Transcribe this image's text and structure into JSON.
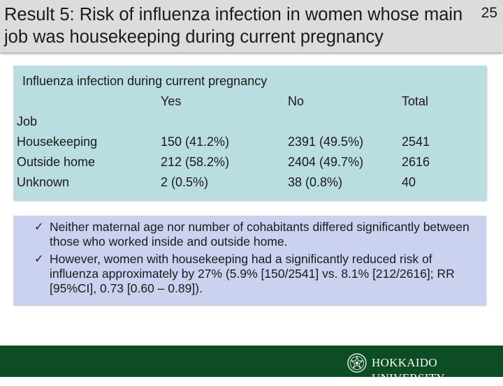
{
  "header": {
    "title": "Result 5: Risk of influenza infection in women whose main job was housekeeping during current pregnancy",
    "slide_number": "25"
  },
  "table": {
    "caption": "Influenza infection during current pregnancy",
    "columns": [
      "Yes",
      "No",
      "Total"
    ],
    "group_label": "Job",
    "rows": [
      {
        "label": "Housekeeping",
        "yes": "150 (41.2%)",
        "no": "2391 (49.5%)",
        "total": "2541"
      },
      {
        "label": "Outside home",
        "yes": "212 (58.2%)",
        "no": "2404 (49.7%)",
        "total": "2616"
      },
      {
        "label": "Unknown",
        "yes": "2 (0.5%)",
        "no": "38 (0.8%)",
        "total": "40"
      }
    ]
  },
  "bullets": [
    {
      "mark": "✓",
      "text": "Neither maternal age nor number of cohabitants differed significantly between those who worked inside and outside home."
    },
    {
      "mark": "✓",
      "text": "However, women with housekeeping had a significantly reduced risk of influenza approximately by 27% (5.9% [150/2541] vs. 8.1% [212/2616]; RR [95%CI], 0.73 [0.60 – 0.89])."
    }
  ],
  "footer": {
    "logo_text": "HOKKAIDO UNIVERSITY",
    "logo_icon": "hokkaido-university-emblem-icon"
  },
  "colors": {
    "header_bg": "#dcdcdc",
    "table_bg": "#b9dde0",
    "bullet_bg": "#cbd2ef",
    "footer_bg": "#0c4d24"
  }
}
